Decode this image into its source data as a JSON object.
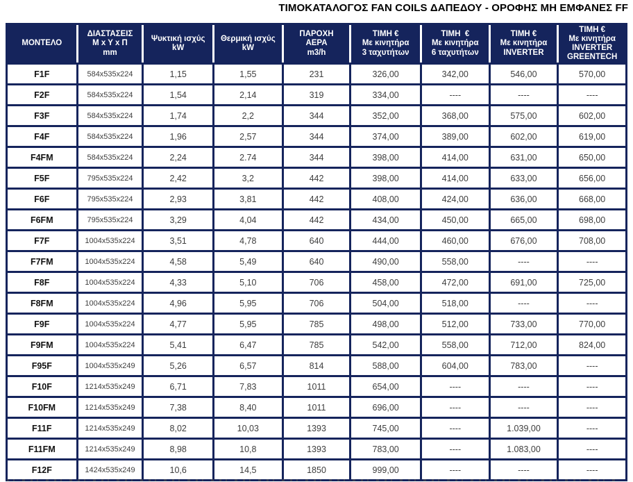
{
  "title": "ΤΙΜΟΚΑΤΑΛΟΓΟΣ FAN COILS ΔΑΠΕΔΟΥ - ΟΡΟΦΗΣ ΜΗ ΕΜΦΑΝΕΣ FF",
  "colors": {
    "navy": "#15245c",
    "header_text": "#ffffff",
    "body_text": "#3d3d3d",
    "model_text": "#111111"
  },
  "table": {
    "headers": [
      "ΜΟΝΤΕΛΟ",
      "ΔΙΑΣΤΑΣΕΙΣ\nM x Y x Π\nmm",
      "Ψυκτική ισχύς\nkW",
      "Θερμική ισχύς\nkW",
      "ΠΑΡΟΧΗ\nΑΕΡΑ\nm3/h",
      "ΤΙΜΗ €\nΜε κινητήρα\n3 ταχυτήτων",
      "ΤΙΜΗ  €\nΜε κινητήρα\n6 ταχυτήτων",
      "ΤΙΜΗ €\nΜε κινητήρα\nINVERTER",
      "ΤΙΜΗ €\nΜε κινητήρα\nINVERTER\nGREENTECH"
    ],
    "rows": [
      [
        "F1F",
        "584x535x224",
        "1,15",
        "1,55",
        "231",
        "326,00",
        "342,00",
        "546,00",
        "570,00"
      ],
      [
        "F2F",
        "584x535x224",
        "1,54",
        "2,14",
        "319",
        "334,00",
        "----",
        "----",
        "----"
      ],
      [
        "F3F",
        "584x535x224",
        "1,74",
        "2,2",
        "344",
        "352,00",
        "368,00",
        "575,00",
        "602,00"
      ],
      [
        "F4F",
        "584x535x224",
        "1,96",
        "2,57",
        "344",
        "374,00",
        "389,00",
        "602,00",
        "619,00"
      ],
      [
        "F4FM",
        "584x535x224",
        "2,24",
        "2.74",
        "344",
        "398,00",
        "414,00",
        "631,00",
        "650,00"
      ],
      [
        "F5F",
        "795x535x224",
        "2,42",
        "3,2",
        "442",
        "398,00",
        "414,00",
        "633,00",
        "656,00"
      ],
      [
        "F6F",
        "795x535x224",
        "2,93",
        "3,81",
        "442",
        "408,00",
        "424,00",
        "636,00",
        "668,00"
      ],
      [
        "F6FM",
        "795x535x224",
        "3,29",
        "4,04",
        "442",
        "434,00",
        "450,00",
        "665,00",
        "698,00"
      ],
      [
        "F7F",
        "1004x535x224",
        "3,51",
        "4,78",
        "640",
        "444,00",
        "460,00",
        "676,00",
        "708,00"
      ],
      [
        "F7FM",
        "1004x535x224",
        "4,58",
        "5,49",
        "640",
        "490,00",
        "558,00",
        "----",
        "----"
      ],
      [
        "F8F",
        "1004x535x224",
        "4,33",
        "5,10",
        "706",
        "458,00",
        "472,00",
        "691,00",
        "725,00"
      ],
      [
        "F8FM",
        "1004x535x224",
        "4,96",
        "5,95",
        "706",
        "504,00",
        "518,00",
        "----",
        "----"
      ],
      [
        "F9F",
        "1004x535x224",
        "4,77",
        "5,95",
        "785",
        "498,00",
        "512,00",
        "733,00",
        "770,00"
      ],
      [
        "F9FM",
        "1004x535x224",
        "5,41",
        "6,47",
        "785",
        "542,00",
        "558,00",
        "712,00",
        "824,00"
      ],
      [
        "F95F",
        "1004x535x249",
        "5,26",
        "6,57",
        "814",
        "588,00",
        "604,00",
        "783,00",
        "----"
      ],
      [
        "F10F",
        "1214x535x249",
        "6,71",
        "7,83",
        "1011",
        "654,00",
        "----",
        "----",
        "----"
      ],
      [
        "F10FM",
        "1214x535x249",
        "7,38",
        "8,40",
        "1011",
        "696,00",
        "----",
        "----",
        "----"
      ],
      [
        "F11F",
        "1214x535x249",
        "8,02",
        "10,03",
        "1393",
        "745,00",
        "----",
        "1.039,00",
        "----"
      ],
      [
        "F11FM",
        "1214x535x249",
        "8,98",
        "10,8",
        "1393",
        "783,00",
        "----",
        "1.083,00",
        "----"
      ],
      [
        "F12F",
        "1424x535x249",
        "10,6",
        "14,5",
        "1850",
        "999,00",
        "----",
        "----",
        "----"
      ]
    ]
  }
}
